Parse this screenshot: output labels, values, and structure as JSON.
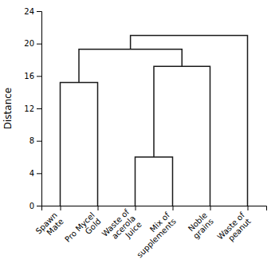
{
  "chart_data": {
    "type": "dendrogram",
    "categories": [
      "Spawn\nMate",
      "Pro Mycel\nGold",
      "Waste of\nacerola\nJuice",
      "Mix of\nsupplements",
      "Noble\ngrains",
      "Waste of\npeanut"
    ],
    "merges": [
      {
        "children": [
          0,
          1
        ],
        "height": 15.2
      },
      {
        "children": [
          2,
          3
        ],
        "height": 6.0
      },
      {
        "children": [
          7,
          4
        ],
        "height": 17.2
      },
      {
        "children": [
          6,
          8
        ],
        "height": 19.3
      },
      {
        "children": [
          9,
          5
        ],
        "height": 21.0
      }
    ],
    "ylabel": "Distance",
    "color": "#1a1a1a",
    "ylim": [
      0,
      24
    ],
    "yticks": [
      0,
      4,
      8,
      12,
      16,
      20,
      24
    ]
  }
}
